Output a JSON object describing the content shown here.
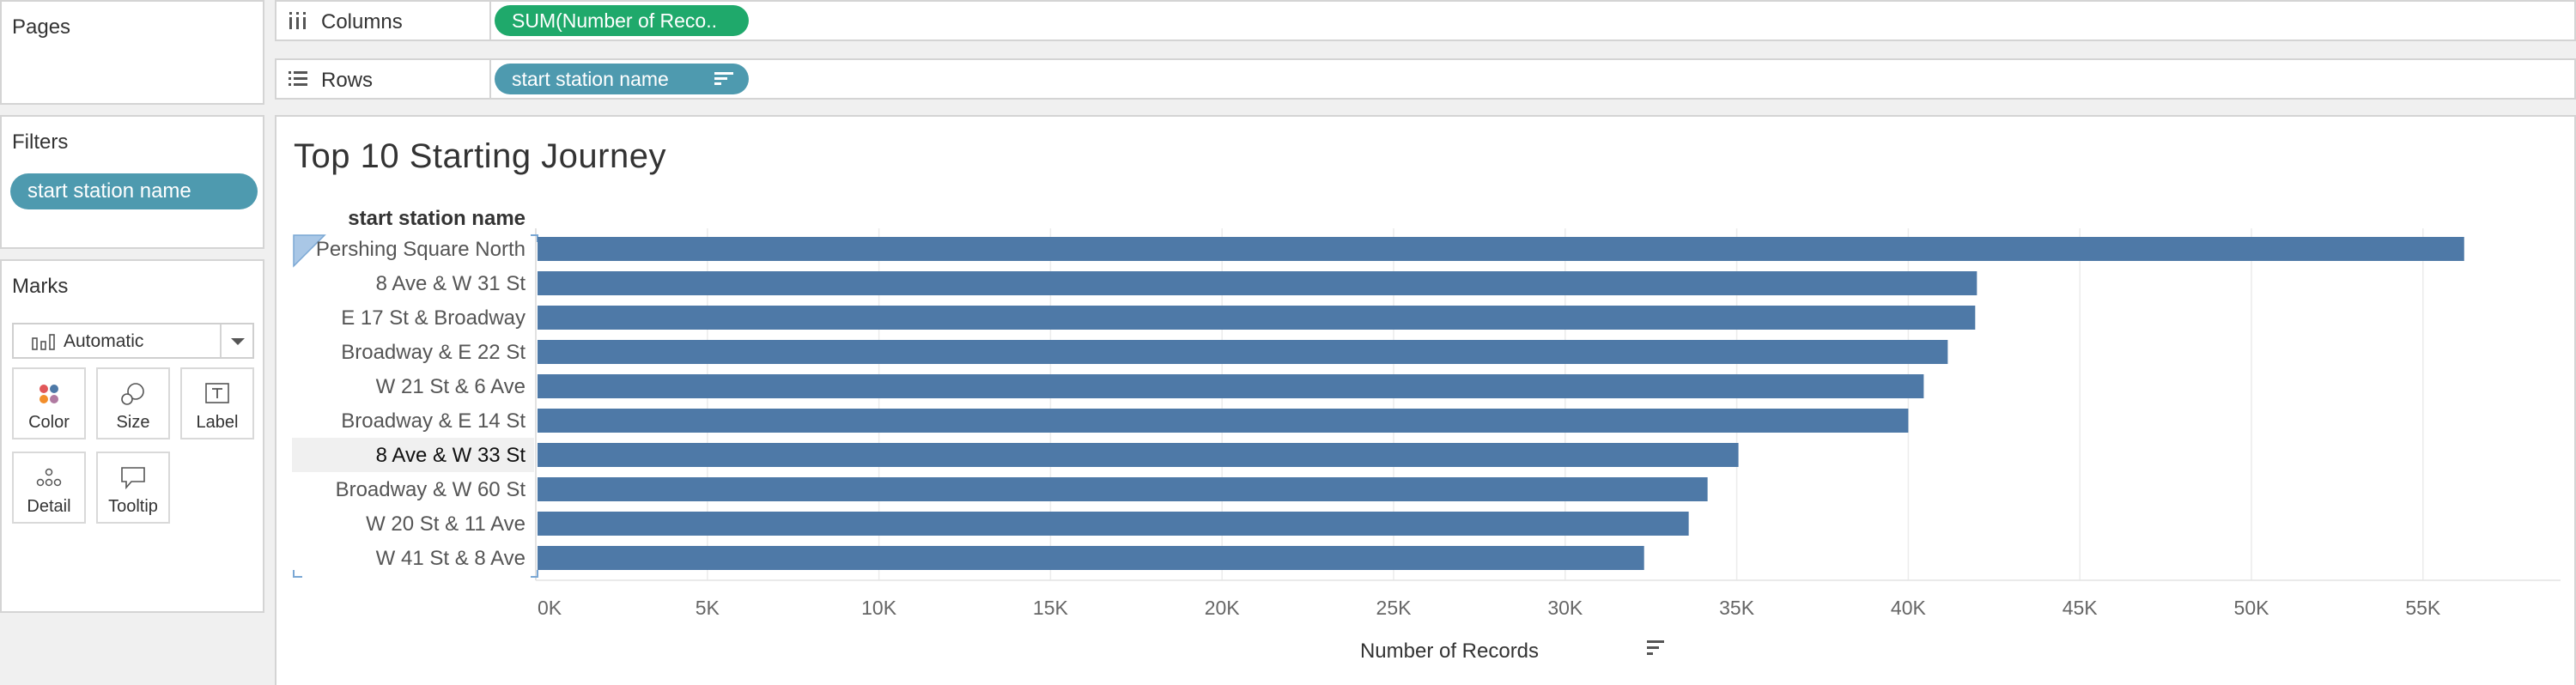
{
  "pages": {
    "title": "Pages"
  },
  "filters": {
    "title": "Filters",
    "pills": [
      "start station name"
    ]
  },
  "marks": {
    "title": "Marks",
    "mark_type": "Automatic",
    "buttons": [
      {
        "label": "Color",
        "icon": "color-icon"
      },
      {
        "label": "Size",
        "icon": "size-icon"
      },
      {
        "label": "Label",
        "icon": "label-icon"
      },
      {
        "label": "Detail",
        "icon": "detail-icon"
      },
      {
        "label": "Tooltip",
        "icon": "tooltip-icon"
      }
    ]
  },
  "columns_shelf": {
    "label": "Columns",
    "pill": "SUM(Number of Reco.."
  },
  "rows_shelf": {
    "label": "Rows",
    "pill": "start station name"
  },
  "colors": {
    "bar": "#4e79a7",
    "measure_pill": "#1fa96b",
    "dimension_pill": "#4e9aaf"
  },
  "chart_data": {
    "type": "bar",
    "orientation": "horizontal",
    "title": "Top 10 Starting Journey",
    "row_header": "start station name",
    "xlabel": "Number of Records",
    "ylabel": "",
    "categories": [
      "Pershing Square North",
      "8 Ave & W 31 St",
      "E 17 St & Broadway",
      "Broadway & E 22 St",
      "W 21 St & 6 Ave",
      "Broadway & E 14 St",
      "8 Ave & W 33 St",
      "Broadway & W 60 St",
      "W 20 St & 11 Ave",
      "W 41 St & 8 Ave"
    ],
    "values": [
      56200,
      42000,
      41950,
      41150,
      40450,
      40000,
      35050,
      34150,
      33600,
      32300
    ],
    "xlim": [
      0,
      58000
    ],
    "xticks": [
      0,
      5000,
      10000,
      15000,
      20000,
      25000,
      30000,
      35000,
      40000,
      45000,
      50000,
      55000
    ],
    "xtick_labels": [
      "0K",
      "5K",
      "10K",
      "15K",
      "20K",
      "25K",
      "30K",
      "35K",
      "40K",
      "45K",
      "50K",
      "55K"
    ],
    "highlighted_row": "8 Ave & W 33 St",
    "grid": "vertical",
    "sort": "descending"
  }
}
